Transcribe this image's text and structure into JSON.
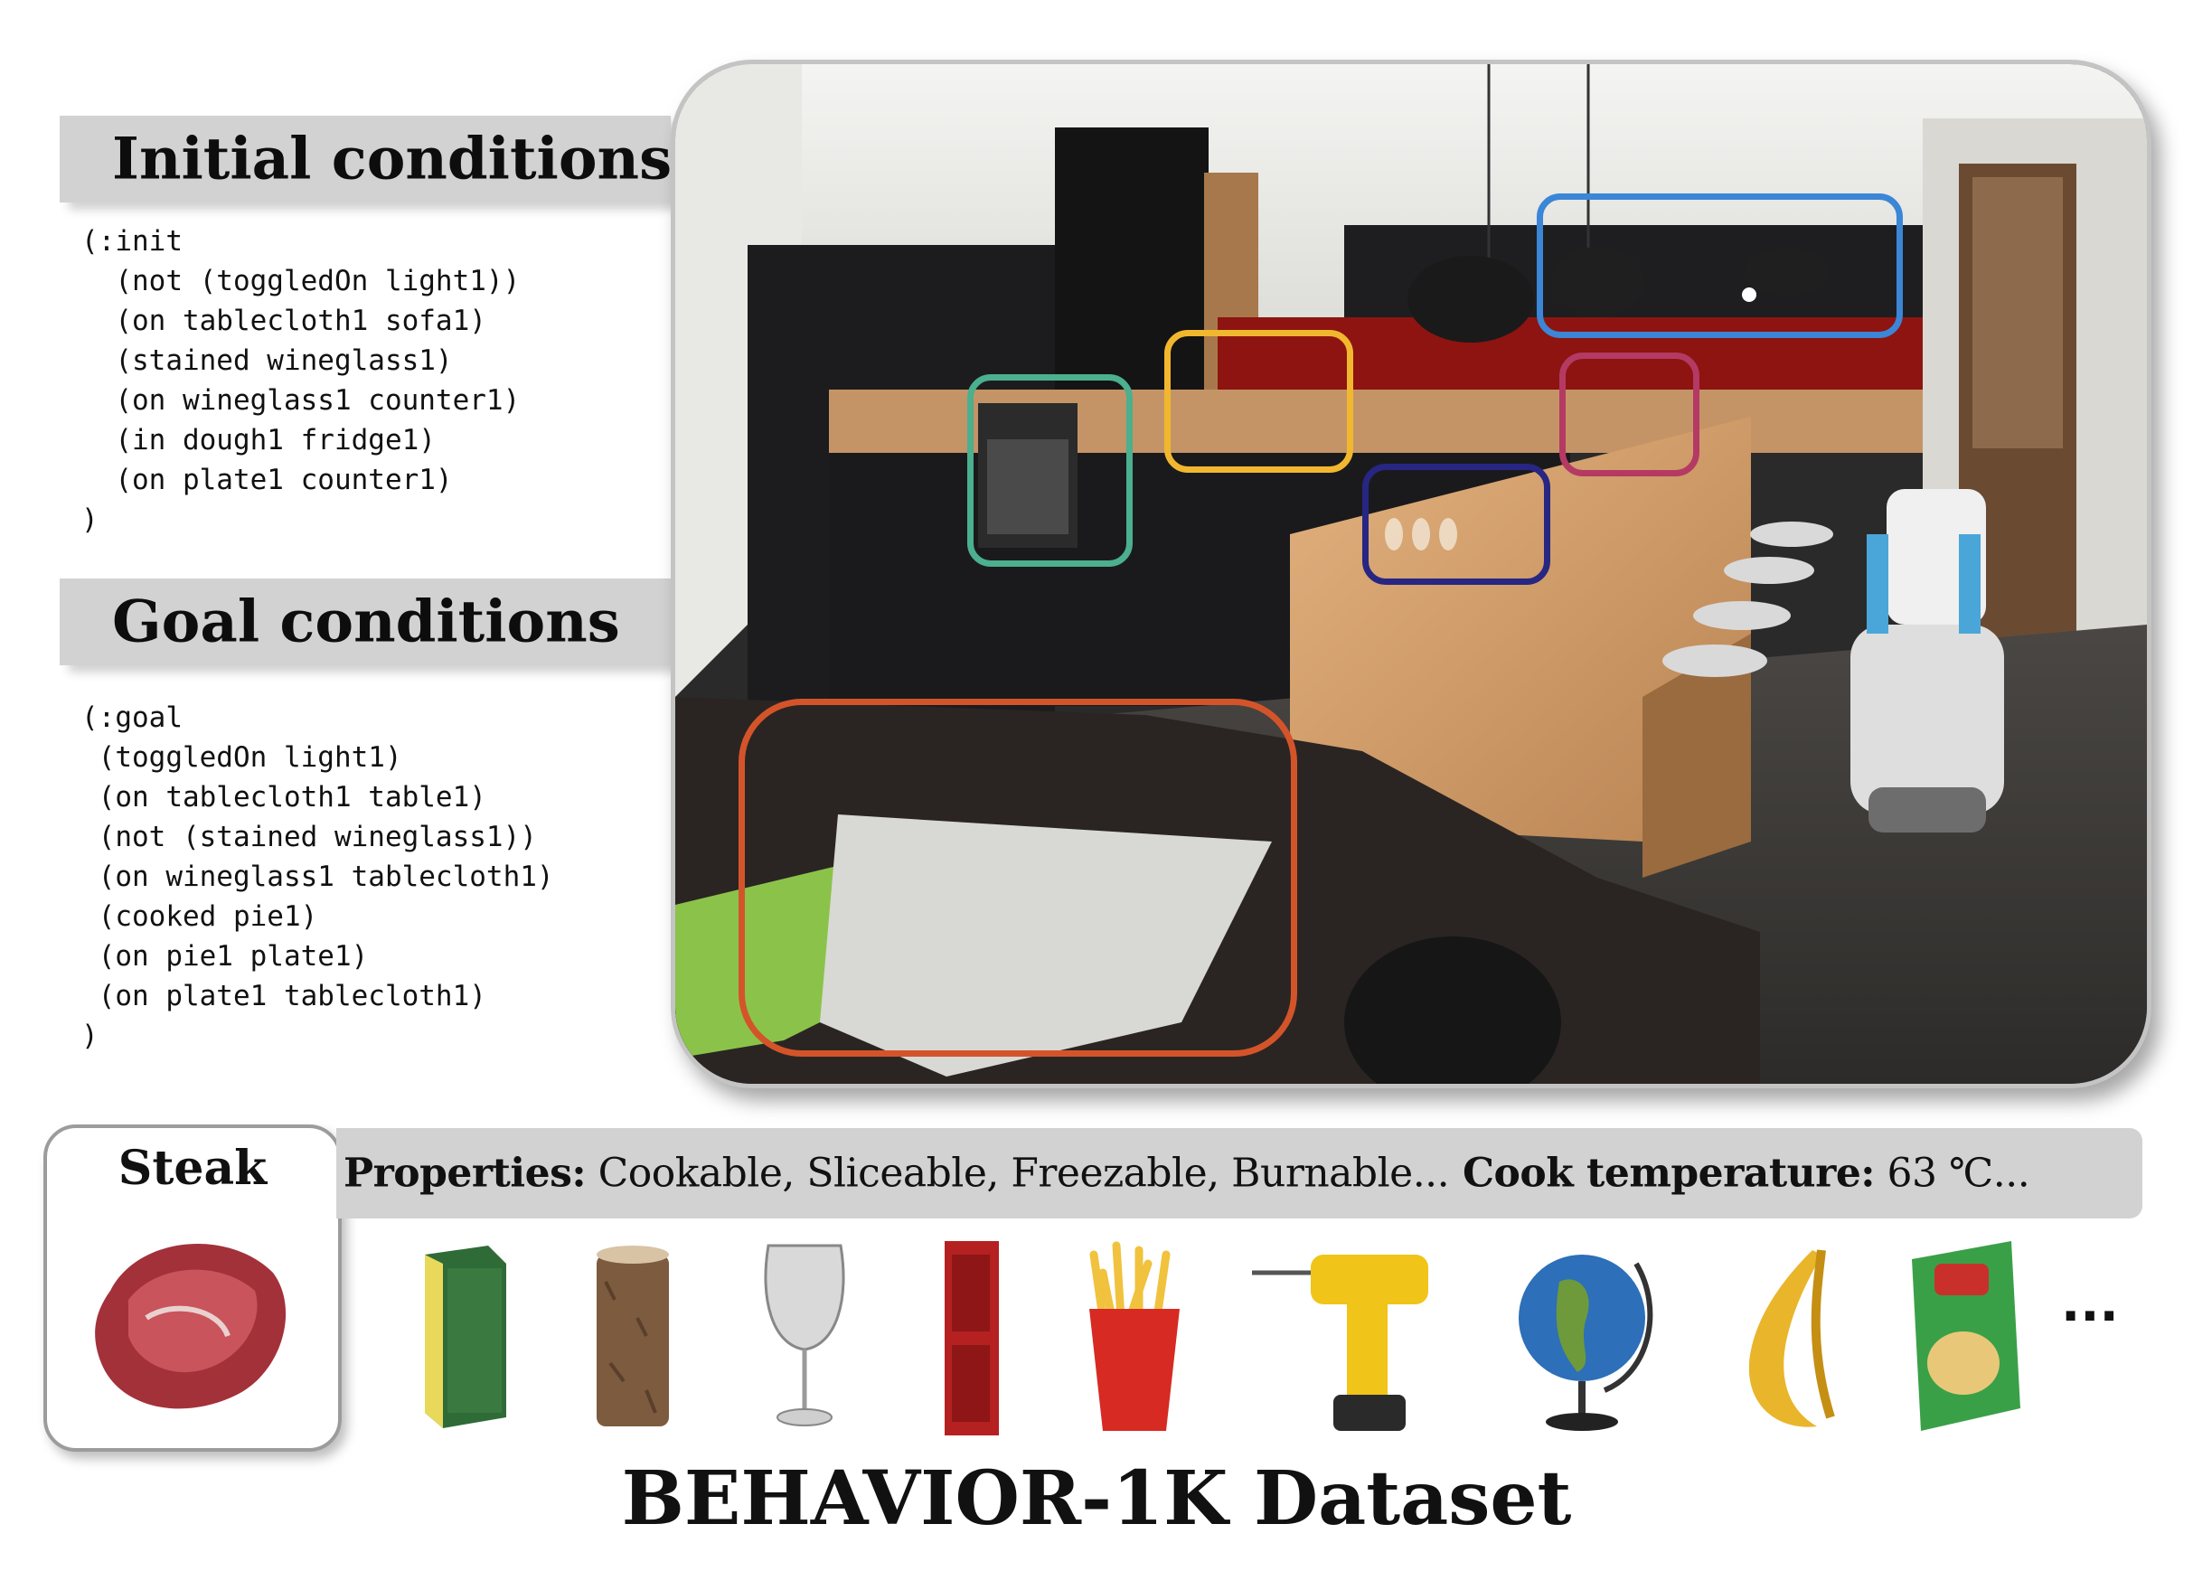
{
  "initial": {
    "heading": "Initial conditions",
    "lines": [
      "(:init",
      "  (not (toggledOn light1))",
      "  (on tablecloth1 sofa1)",
      "  (stained wineglass1)",
      "  (on wineglass1 counter1)",
      "  (in dough1 fridge1)",
      "  (on plate1 counter1)",
      ")"
    ]
  },
  "goal": {
    "heading": "Goal conditions",
    "lines": [
      "(:goal",
      " (toggledOn light1)",
      " (on tablecloth1 table1)",
      " (not (stained wineglass1))",
      " (on wineglass1 tablecloth1)",
      " (cooked pie1)",
      " (on pie1 plate1)",
      " (on plate1 tablecloth1)",
      ")"
    ]
  },
  "scene": {
    "highlight_colors": {
      "lights": "#3b86d6",
      "sink": "#f1b72f",
      "oven": "#4caf8e",
      "stove": "#b43a64",
      "wineglasses": "#272682",
      "tablecloth": "#d4542a"
    }
  },
  "steak": {
    "title": "Steak"
  },
  "properties": {
    "label": "Properties:",
    "value": " Cookable, Sliceable, Freezable, Burnable...",
    "temp_label": " Cook temperature:",
    "temp_value": " 63 ℃..."
  },
  "objects": [
    "sponge-icon",
    "log-icon",
    "wine-glass-icon",
    "locker-icon",
    "fries-icon",
    "drill-icon",
    "globe-icon",
    "banana-icon",
    "chips-bag-icon"
  ],
  "more": "...",
  "dataset_title": "BEHAVIOR-1K Dataset"
}
